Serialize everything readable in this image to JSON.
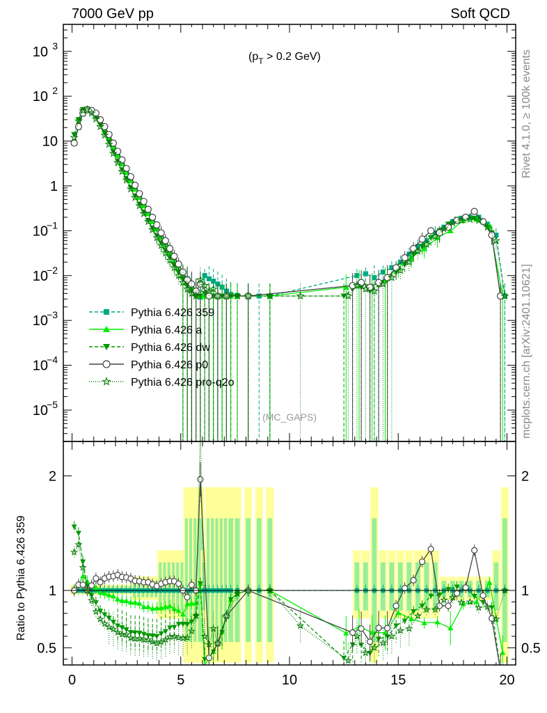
{
  "header": {
    "left": "7000 GeV pp",
    "right": "Soft QCD",
    "side_top": "Rivet 4.1.0, ≥ 100k events",
    "side_bottom": "mcplots.cern.ch [arXiv:2401.10621]"
  },
  "chart_data": {
    "type": "line",
    "annotation_main": "(p",
    "annotation_sub": "T",
    "annotation_tail": " > 0.2 GeV)",
    "watermark": "(MC_GAPS)",
    "ratio_ylabel": "Ratio to Pythia 6.426 359",
    "xlim": [
      -0.4,
      20.4
    ],
    "ylim_main": [
      2e-06,
      4000
    ],
    "ylim_ratio": [
      0.35,
      2.3
    ],
    "x_ticks": [
      "0",
      "5",
      "10",
      "15",
      "20"
    ],
    "y_ticks_main": [
      {
        "base": "10",
        "exp": "3"
      },
      {
        "base": "10",
        "exp": "2"
      },
      {
        "base": "10",
        "exp": ""
      },
      {
        "base": "1",
        "exp": ""
      },
      {
        "base": "10",
        "exp": "−1"
      },
      {
        "base": "10",
        "exp": "−2"
      },
      {
        "base": "10",
        "exp": "−3"
      },
      {
        "base": "10",
        "exp": "−4"
      },
      {
        "base": "10",
        "exp": "−5"
      }
    ],
    "y_ticks_ratio": [
      "2",
      "1",
      "0.5"
    ],
    "legend": [
      {
        "label": "Pythia 6.426 359",
        "color": "#00aa88",
        "dash": "5,3",
        "marker": "square"
      },
      {
        "label": "Pythia 6.426 a",
        "color": "#00ee00",
        "dash": "",
        "marker": "triangle"
      },
      {
        "label": "Pythia 6.426 dw",
        "color": "#009900",
        "dash": "5,3",
        "marker": "tri-down"
      },
      {
        "label": "Pythia 6.426 p0",
        "color": "#444444",
        "dash": "",
        "marker": "circle"
      },
      {
        "label": "Pythia 6.426 pro-q2o",
        "color": "#007700",
        "dash": "1,2",
        "marker": "star"
      }
    ],
    "series": [
      {
        "name": "Pythia 6.426 359",
        "color": "#00aa88",
        "x": [
          0.1,
          0.3,
          0.5,
          0.7,
          0.9,
          1.1,
          1.3,
          1.5,
          1.7,
          1.9,
          2.1,
          2.3,
          2.5,
          2.7,
          2.9,
          3.1,
          3.3,
          3.5,
          3.7,
          3.9,
          4.1,
          4.3,
          4.5,
          4.7,
          4.9,
          5.1,
          5.3,
          5.5,
          5.7,
          5.9,
          6.1,
          6.3,
          6.5,
          6.7,
          6.9,
          7.1,
          7.3,
          7.6,
          8.1,
          8.6,
          9.1,
          13.1,
          13.5,
          13.9,
          14.3,
          14.7,
          15.1,
          15.5,
          15.9,
          16.3,
          16.7,
          17.1,
          17.5,
          17.9,
          18.3,
          18.7,
          19.1,
          19.5,
          19.9
        ],
        "y": [
          9,
          20,
          40,
          50,
          46,
          38,
          28,
          19,
          12.5,
          8,
          5.2,
          3.4,
          2.2,
          1.45,
          0.95,
          0.62,
          0.42,
          0.28,
          0.19,
          0.13,
          0.085,
          0.056,
          0.037,
          0.025,
          0.017,
          0.012,
          0.0085,
          0.0062,
          0.0045,
          0.0033,
          0.01,
          0.0085,
          0.0075,
          0.0065,
          0.0055,
          0.0045,
          0.0038,
          0.0036,
          0.0035,
          0.0035,
          0.0035,
          0.01,
          0.011,
          0.009,
          0.012,
          0.015,
          0.02,
          0.03,
          0.045,
          0.06,
          0.09,
          0.12,
          0.16,
          0.19,
          0.2,
          0.2,
          0.14,
          0.08,
          0.0035
        ]
      },
      {
        "name": "Pythia 6.426 a",
        "color": "#00ee00",
        "x": [
          0.1,
          0.3,
          0.5,
          0.7,
          0.9,
          1.1,
          1.3,
          1.5,
          1.7,
          1.9,
          2.1,
          2.3,
          2.5,
          2.7,
          2.9,
          3.1,
          3.3,
          3.5,
          3.7,
          3.9,
          4.1,
          4.3,
          4.5,
          4.7,
          4.9,
          5.1,
          5.3,
          5.5,
          5.7,
          5.9,
          6.1,
          6.3,
          6.5,
          6.7,
          6.9,
          7.1,
          7.3,
          7.6,
          8.1,
          9.1,
          12.6,
          13.2,
          13.8,
          14.4,
          15.0,
          15.6,
          16.2,
          16.8,
          17.4,
          18.0,
          18.6,
          19.2,
          19.8
        ],
        "y": [
          9,
          21,
          45,
          54,
          48,
          39,
          27.5,
          18.5,
          12,
          7.6,
          4.8,
          3.1,
          2.0,
          1.3,
          0.85,
          0.55,
          0.36,
          0.24,
          0.16,
          0.11,
          0.072,
          0.048,
          0.032,
          0.021,
          0.014,
          0.0095,
          0.0075,
          0.0055,
          0.004,
          0.0035,
          0.0035,
          0.0035,
          0.0035,
          0.0035,
          0.0035,
          0.0035,
          0.0035,
          0.0035,
          0.0035,
          0.0035,
          0.0055,
          0.007,
          0.006,
          0.008,
          0.015,
          0.025,
          0.04,
          0.07,
          0.1,
          0.17,
          0.18,
          0.13,
          0.0035
        ]
      },
      {
        "name": "Pythia 6.426 dw",
        "color": "#009900",
        "x": [
          0.1,
          0.3,
          0.5,
          0.7,
          0.9,
          1.1,
          1.3,
          1.5,
          1.7,
          1.9,
          2.1,
          2.3,
          2.5,
          2.7,
          2.9,
          3.1,
          3.3,
          3.5,
          3.7,
          3.9,
          4.1,
          4.3,
          4.5,
          4.7,
          4.9,
          5.1,
          5.3,
          5.5,
          5.7,
          5.9,
          6.1,
          6.3,
          6.5,
          6.7,
          6.9,
          7.1,
          7.3,
          7.6,
          8.1,
          9.1,
          12.5,
          12.9,
          13.3,
          13.7,
          14.1,
          14.5,
          14.9,
          15.3,
          15.7,
          16.1,
          16.5,
          16.9,
          17.3,
          17.7,
          18.1,
          18.5,
          18.9,
          19.3,
          19.7
        ],
        "y": [
          14,
          30,
          50,
          52,
          44,
          34,
          23,
          15,
          9.5,
          5.8,
          3.6,
          2.3,
          1.45,
          0.92,
          0.6,
          0.39,
          0.26,
          0.17,
          0.115,
          0.078,
          0.053,
          0.036,
          0.025,
          0.017,
          0.012,
          0.0085,
          0.006,
          0.0045,
          0.0035,
          0.0035,
          0.004,
          0.0035,
          0.0035,
          0.0035,
          0.0035,
          0.0035,
          0.0035,
          0.0035,
          0.0035,
          0.0035,
          0.0035,
          0.005,
          0.0055,
          0.0045,
          0.006,
          0.008,
          0.012,
          0.018,
          0.03,
          0.045,
          0.07,
          0.1,
          0.14,
          0.18,
          0.2,
          0.19,
          0.15,
          0.09,
          0.0035
        ]
      },
      {
        "name": "Pythia 6.426 p0",
        "color": "#444444",
        "x": [
          0.1,
          0.3,
          0.5,
          0.7,
          0.9,
          1.1,
          1.3,
          1.5,
          1.7,
          1.9,
          2.1,
          2.3,
          2.5,
          2.7,
          2.9,
          3.1,
          3.3,
          3.5,
          3.7,
          3.9,
          4.1,
          4.3,
          4.5,
          4.7,
          4.9,
          5.1,
          5.3,
          5.5,
          5.7,
          5.9,
          6.3,
          6.7,
          7.1,
          8.1,
          12.9,
          13.3,
          13.7,
          14.1,
          14.5,
          14.9,
          15.3,
          15.7,
          16.1,
          16.5,
          16.9,
          17.3,
          17.7,
          18.1,
          18.5,
          18.9,
          19.3,
          19.7
        ],
        "y": [
          9,
          21,
          42,
          50,
          48,
          42,
          30,
          21,
          14,
          9,
          5.9,
          3.8,
          2.45,
          1.6,
          1.03,
          0.67,
          0.45,
          0.3,
          0.2,
          0.135,
          0.09,
          0.06,
          0.04,
          0.027,
          0.018,
          0.012,
          0.008,
          0.0065,
          0.0045,
          0.0065,
          0.0035,
          0.0035,
          0.0035,
          0.0035,
          0.006,
          0.007,
          0.0055,
          0.007,
          0.009,
          0.015,
          0.025,
          0.04,
          0.065,
          0.1,
          0.09,
          0.12,
          0.17,
          0.2,
          0.27,
          0.16,
          0.08,
          0.0035
        ]
      },
      {
        "name": "Pythia 6.426 pro-q2o",
        "color": "#007700",
        "x": [
          0.1,
          0.3,
          0.5,
          0.7,
          0.9,
          1.1,
          1.3,
          1.5,
          1.7,
          1.9,
          2.1,
          2.3,
          2.5,
          2.7,
          2.9,
          3.1,
          3.3,
          3.5,
          3.7,
          3.9,
          4.1,
          4.3,
          4.5,
          4.7,
          4.9,
          5.1,
          5.3,
          5.5,
          5.7,
          5.9,
          6.1,
          6.3,
          6.5,
          6.7,
          7.1,
          7.6,
          8.1,
          9.1,
          10.5,
          12.7,
          13.1,
          13.5,
          13.9,
          14.3,
          14.7,
          15.1,
          15.5,
          15.9,
          16.3,
          16.7,
          17.1,
          17.5,
          17.9,
          18.3,
          18.7,
          19.1,
          19.5,
          19.9
        ],
        "y": [
          12,
          28,
          48,
          50,
          42,
          31,
          21,
          13.5,
          8.5,
          5.3,
          3.3,
          2.1,
          1.35,
          0.85,
          0.55,
          0.36,
          0.24,
          0.16,
          0.105,
          0.07,
          0.047,
          0.032,
          0.022,
          0.015,
          0.01,
          0.007,
          0.005,
          0.004,
          0.0035,
          0.008,
          0.006,
          0.0045,
          0.005,
          0.0035,
          0.0035,
          0.0035,
          0.0035,
          0.0035,
          0.0035,
          0.0035,
          0.006,
          0.005,
          0.0045,
          0.0065,
          0.009,
          0.013,
          0.02,
          0.035,
          0.05,
          0.075,
          0.11,
          0.15,
          0.17,
          0.18,
          0.17,
          0.12,
          0.06,
          0.0035
        ]
      }
    ]
  }
}
